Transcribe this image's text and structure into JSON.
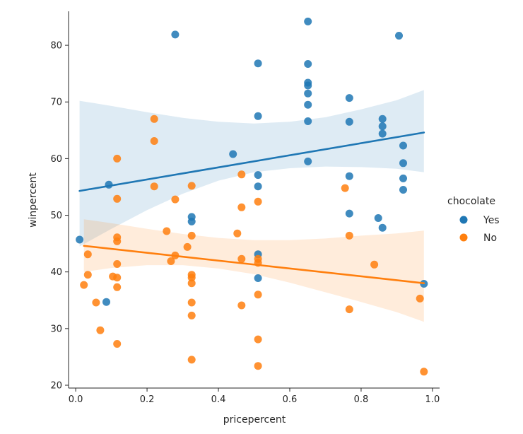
{
  "chart_data": {
    "type": "scatter",
    "xlabel": "pricepercent",
    "ylabel": "winpercent",
    "xlim": [
      -0.02,
      1.02
    ],
    "ylim": [
      19.5,
      86
    ],
    "x_ticks": [
      0.0,
      0.2,
      0.4,
      0.6,
      0.8,
      1.0
    ],
    "x_tick_labels": [
      "0.0",
      "0.2",
      "0.4",
      "0.6",
      "0.8",
      "1.0"
    ],
    "y_ticks": [
      20,
      30,
      40,
      50,
      60,
      70,
      80
    ],
    "y_tick_labels": [
      "20",
      "30",
      "40",
      "50",
      "60",
      "70",
      "80"
    ],
    "grid": false,
    "legend": {
      "title": "chocolate",
      "placement": "right"
    },
    "series": [
      {
        "name": "Yes",
        "color": "#1f77b4",
        "points": [
          [
            0.011,
            45.7
          ],
          [
            0.086,
            34.7
          ],
          [
            0.093,
            55.4
          ],
          [
            0.279,
            81.9
          ],
          [
            0.325,
            49.7
          ],
          [
            0.325,
            48.9
          ],
          [
            0.441,
            60.8
          ],
          [
            0.511,
            76.8
          ],
          [
            0.511,
            67.5
          ],
          [
            0.511,
            57.1
          ],
          [
            0.511,
            55.1
          ],
          [
            0.511,
            43.1
          ],
          [
            0.511,
            38.9
          ],
          [
            0.651,
            84.2
          ],
          [
            0.651,
            76.7
          ],
          [
            0.651,
            73.4
          ],
          [
            0.651,
            72.9
          ],
          [
            0.651,
            71.5
          ],
          [
            0.651,
            69.5
          ],
          [
            0.651,
            66.6
          ],
          [
            0.651,
            59.5
          ],
          [
            0.767,
            70.7
          ],
          [
            0.767,
            66.5
          ],
          [
            0.767,
            56.9
          ],
          [
            0.767,
            50.3
          ],
          [
            0.848,
            49.5
          ],
          [
            0.86,
            67.0
          ],
          [
            0.86,
            65.7
          ],
          [
            0.86,
            64.4
          ],
          [
            0.86,
            47.8
          ],
          [
            0.906,
            81.7
          ],
          [
            0.918,
            62.3
          ],
          [
            0.918,
            59.2
          ],
          [
            0.918,
            56.5
          ],
          [
            0.918,
            54.5
          ],
          [
            0.976,
            37.9
          ]
        ],
        "regression": {
          "x": [
            0.011,
            0.976
          ],
          "y": [
            54.3,
            64.6
          ]
        },
        "ci_band": {
          "x": [
            0.011,
            0.1,
            0.2,
            0.3,
            0.4,
            0.5,
            0.6,
            0.7,
            0.8,
            0.9,
            0.976
          ],
          "upper": [
            70.2,
            69.3,
            68.2,
            67.2,
            66.5,
            66.2,
            66.5,
            67.3,
            68.7,
            70.3,
            72.1
          ],
          "lower": [
            44.5,
            47.6,
            50.9,
            53.8,
            56.1,
            57.6,
            58.3,
            58.6,
            58.5,
            58.2,
            57.6
          ]
        }
      },
      {
        "name": "No",
        "color": "#ff7f0e",
        "points": [
          [
            0.023,
            37.7
          ],
          [
            0.034,
            43.1
          ],
          [
            0.034,
            39.5
          ],
          [
            0.057,
            34.6
          ],
          [
            0.069,
            29.7
          ],
          [
            0.104,
            39.2
          ],
          [
            0.116,
            60.0
          ],
          [
            0.116,
            52.9
          ],
          [
            0.116,
            46.1
          ],
          [
            0.116,
            45.4
          ],
          [
            0.116,
            41.4
          ],
          [
            0.116,
            39.0
          ],
          [
            0.116,
            37.3
          ],
          [
            0.116,
            27.3
          ],
          [
            0.22,
            67.0
          ],
          [
            0.22,
            63.1
          ],
          [
            0.22,
            55.1
          ],
          [
            0.255,
            47.2
          ],
          [
            0.267,
            41.9
          ],
          [
            0.279,
            52.8
          ],
          [
            0.279,
            42.9
          ],
          [
            0.313,
            44.4
          ],
          [
            0.325,
            55.2
          ],
          [
            0.325,
            46.4
          ],
          [
            0.325,
            39.5
          ],
          [
            0.325,
            39.0
          ],
          [
            0.325,
            38.0
          ],
          [
            0.325,
            34.6
          ],
          [
            0.325,
            32.3
          ],
          [
            0.325,
            24.5
          ],
          [
            0.453,
            46.8
          ],
          [
            0.465,
            57.2
          ],
          [
            0.465,
            51.4
          ],
          [
            0.465,
            42.3
          ],
          [
            0.465,
            34.1
          ],
          [
            0.511,
            52.4
          ],
          [
            0.511,
            42.3
          ],
          [
            0.511,
            41.6
          ],
          [
            0.511,
            36.0
          ],
          [
            0.511,
            28.1
          ],
          [
            0.511,
            23.4
          ],
          [
            0.755,
            54.8
          ],
          [
            0.767,
            46.4
          ],
          [
            0.767,
            33.4
          ],
          [
            0.837,
            41.3
          ],
          [
            0.965,
            35.3
          ],
          [
            0.976,
            22.4
          ]
        ],
        "regression": {
          "x": [
            0.023,
            0.976
          ],
          "y": [
            44.6,
            38.0
          ]
        },
        "ci_band": {
          "x": [
            0.023,
            0.1,
            0.2,
            0.3,
            0.4,
            0.5,
            0.6,
            0.7,
            0.8,
            0.9,
            0.976
          ],
          "upper": [
            49.3,
            48.6,
            47.6,
            46.7,
            46.0,
            45.6,
            45.6,
            45.9,
            46.4,
            46.8,
            47.3
          ],
          "lower": [
            40.0,
            40.7,
            41.2,
            41.2,
            40.6,
            39.6,
            38.1,
            36.4,
            34.7,
            32.9,
            31.2
          ]
        }
      }
    ]
  }
}
